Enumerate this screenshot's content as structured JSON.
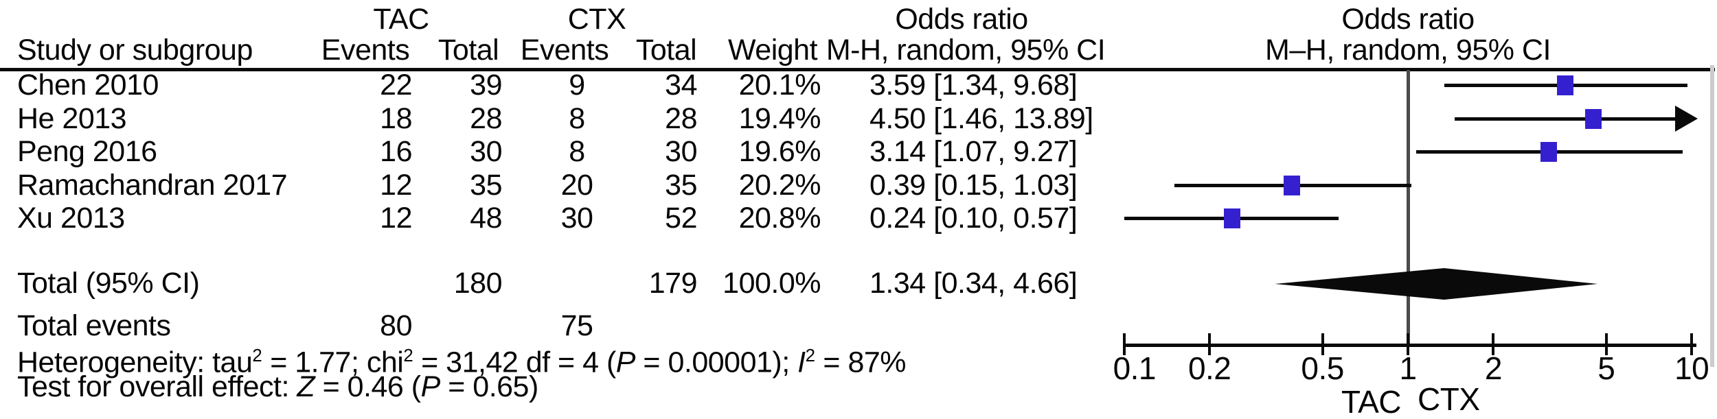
{
  "header": {
    "group_left": "TAC",
    "group_right": "CTX",
    "study_col": "Study or subgroup",
    "events": "Events",
    "total": "Total",
    "weight": "Weight",
    "or_title_left": "Odds ratio",
    "or_sub_left": "M-H, random, 95% CI",
    "or_title_right": "Odds ratio",
    "or_sub_right": "M–H, random, 95% CI"
  },
  "rows": [
    {
      "study": "Chen 2010",
      "tac_events": "22",
      "tac_total": "39",
      "ctx_events": "9",
      "ctx_total": "34",
      "weight": "20.1%",
      "or_ci": "3.59 [1.34, 9.68]"
    },
    {
      "study": "He 2013",
      "tac_events": "18",
      "tac_total": "28",
      "ctx_events": "8",
      "ctx_total": "28",
      "weight": "19.4%",
      "or_ci": "4.50 [1.46, 13.89]"
    },
    {
      "study": "Peng 2016",
      "tac_events": "16",
      "tac_total": "30",
      "ctx_events": "8",
      "ctx_total": "30",
      "weight": "19.6%",
      "or_ci": "3.14 [1.07, 9.27]"
    },
    {
      "study": "Ramachandran 2017",
      "tac_events": "12",
      "tac_total": "35",
      "ctx_events": "20",
      "ctx_total": "35",
      "weight": "20.2%",
      "or_ci": "0.39 [0.15, 1.03]"
    },
    {
      "study": "Xu 2013",
      "tac_events": "12",
      "tac_total": "48",
      "ctx_events": "30",
      "ctx_total": "52",
      "weight": "20.8%",
      "or_ci": "0.24 [0.10, 0.57]"
    }
  ],
  "total_row": {
    "label": "Total (95% CI)",
    "tac_total": "180",
    "ctx_total": "179",
    "weight": "100.0%",
    "or_ci": "1.34 [0.34, 4.66]"
  },
  "total_events": {
    "label": "Total events",
    "tac": "80",
    "ctx": "75"
  },
  "footer": {
    "het_1": "Heterogeneity: tau",
    "het_sup1": "2",
    "het_2": " = 1.77; chi",
    "het_sup2": "2",
    "het_3": " = 31,42 df = 4 (",
    "het_p": "P",
    "het_4": " = 0.00001); ",
    "het_i": "I",
    "het_sup3": "2",
    "het_5": " = 87%",
    "test_1": "Test for overall effect: ",
    "test_z": "Z",
    "test_2": " = 0.46 (",
    "test_p": "P",
    "test_3": " = 0.65)"
  },
  "chart_data": {
    "type": "scatter",
    "subtype": "forest-plot",
    "title": "Odds ratio, M–H, random, 95% CI",
    "x_scale": "log10",
    "xlim": [
      0.1,
      10
    ],
    "x_ticks": [
      0.1,
      0.2,
      0.5,
      1,
      2,
      5,
      10
    ],
    "x_tick_labels": [
      "0.1",
      "0.2",
      "0.5",
      "1",
      "2",
      "5",
      "10"
    ],
    "null_line": 1,
    "favours_left_label": "TAC",
    "favours_right_label": "CTX",
    "marker_color": "#3520cf",
    "studies": [
      {
        "name": "Chen 2010",
        "or": 3.59,
        "ci_low": 1.34,
        "ci_high": 9.68,
        "weight_pct": 20.1
      },
      {
        "name": "He 2013",
        "or": 4.5,
        "ci_low": 1.46,
        "ci_high": 13.89,
        "weight_pct": 19.4
      },
      {
        "name": "Peng 2016",
        "or": 3.14,
        "ci_low": 1.07,
        "ci_high": 9.27,
        "weight_pct": 19.6
      },
      {
        "name": "Ramachandran 2017",
        "or": 0.39,
        "ci_low": 0.15,
        "ci_high": 1.03,
        "weight_pct": 20.2
      },
      {
        "name": "Xu 2013",
        "or": 0.24,
        "ci_low": 0.1,
        "ci_high": 0.57,
        "weight_pct": 20.8
      }
    ],
    "summary": {
      "name": "Total (95% CI)",
      "or": 1.34,
      "ci_low": 0.34,
      "ci_high": 4.66,
      "weight_pct": 100.0
    }
  }
}
